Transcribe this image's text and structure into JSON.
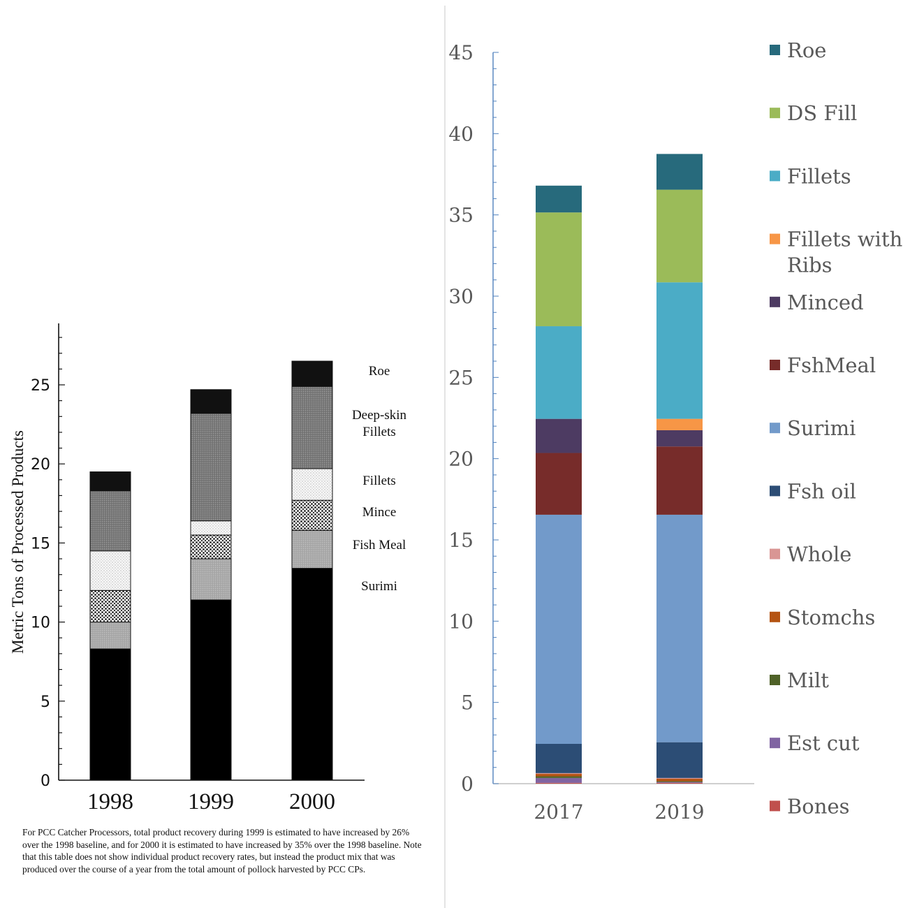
{
  "chart_data": [
    {
      "type": "bar",
      "stacked": true,
      "categories": [
        "1998",
        "1999",
        "2000"
      ],
      "ylabel": "Metric Tons of Processed Products",
      "xlabel": "",
      "ylim": [
        0,
        28
      ],
      "yticks": [
        0,
        5,
        10,
        15,
        20,
        25
      ],
      "series": [
        {
          "name": "Surimi",
          "values": [
            8.3,
            11.4,
            13.4
          ],
          "color": "#000000"
        },
        {
          "name": "Fish Meal",
          "values": [
            1.7,
            2.6,
            2.4
          ],
          "color": "#a9a9a9"
        },
        {
          "name": "Mince",
          "values": [
            2.0,
            1.5,
            1.9
          ],
          "color": "#e6e6e6"
        },
        {
          "name": "Fillets",
          "values": [
            2.5,
            0.9,
            2.0
          ],
          "color": "#efefef"
        },
        {
          "name": "Deep-skin Fillets",
          "values": [
            3.8,
            6.8,
            5.2
          ],
          "color": "#858585"
        },
        {
          "name": "Roe",
          "values": [
            1.2,
            1.5,
            1.6
          ],
          "color": "#111111"
        }
      ],
      "legend_labels": [
        "Roe",
        "Deep-skin\nFillets",
        "Fillets",
        "Mince",
        "Fish Meal",
        "Surimi"
      ],
      "caption": "For PCC Catcher Processors, total product recovery during 1999 is estimated to have increased by 26% over the 1998 baseline, and for 2000 it is estimated to have increased by 35% over the 1998 baseline.  Note that this table does not show individual product recovery rates, but instead the product mix that was produced over the course of a year from the total amount of pollock harvested by PCC CPs.",
      "legend": "right",
      "grid": false
    },
    {
      "type": "bar",
      "stacked": true,
      "categories": [
        "2017",
        "2019"
      ],
      "xlabel": "",
      "ylabel": "",
      "ylim": [
        0,
        45
      ],
      "yticks": [
        0,
        5,
        10,
        15,
        20,
        25,
        30,
        35,
        40,
        45
      ],
      "series": [
        {
          "name": "Bones",
          "values": [
            0.05,
            0.05
          ],
          "color": "#c0504d"
        },
        {
          "name": "Est cut",
          "values": [
            0.3,
            0.05
          ],
          "color": "#8064a2"
        },
        {
          "name": "Milt",
          "values": [
            0.1,
            0.05
          ],
          "color": "#4f6228"
        },
        {
          "name": "Stomchs",
          "values": [
            0.15,
            0.15
          ],
          "color": "#b45312"
        },
        {
          "name": "Whole",
          "values": [
            0.05,
            0.05
          ],
          "color": "#d99694"
        },
        {
          "name": "Fsh oil",
          "values": [
            1.8,
            2.2
          ],
          "color": "#2c4d75"
        },
        {
          "name": "Surimi",
          "values": [
            14.1,
            14.0
          ],
          "color": "#729aca"
        },
        {
          "name": "FshMeal",
          "values": [
            3.8,
            4.2
          ],
          "color": "#772c2a"
        },
        {
          "name": "Minced",
          "values": [
            2.1,
            1.0
          ],
          "color": "#4d3b62"
        },
        {
          "name": "Fillets with Ribs",
          "values": [
            0.0,
            0.7
          ],
          "color": "#f79646"
        },
        {
          "name": "Fillets",
          "values": [
            5.7,
            8.4
          ],
          "color": "#4bacc6"
        },
        {
          "name": "DS Fill",
          "values": [
            7.0,
            5.7
          ],
          "color": "#9bbb59"
        },
        {
          "name": "Roe",
          "values": [
            1.65,
            2.2
          ],
          "color": "#276a7c"
        }
      ],
      "legend_order": [
        "Roe",
        "DS Fill",
        "Fillets",
        "Fillets with Ribs",
        "Minced",
        "FshMeal",
        "Surimi",
        "Fsh oil",
        "Whole",
        "Stomchs",
        "Milt",
        "Est cut",
        "Bones"
      ],
      "legend": "right",
      "grid": false
    }
  ]
}
